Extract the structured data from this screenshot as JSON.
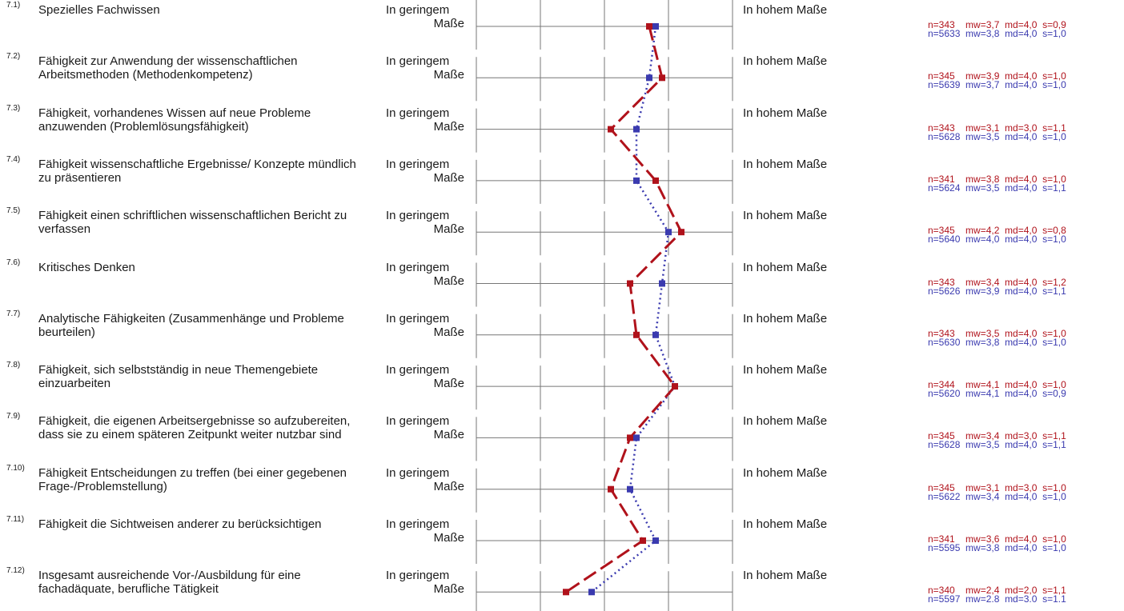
{
  "chart_data": {
    "type": "line",
    "scale": {
      "min": 1,
      "max": 5,
      "left_label": "In geringem Maße",
      "left_label_parts": [
        "In geringem",
        "Maße"
      ],
      "right_label": "In hohem Maße"
    },
    "items": [
      {
        "number": "7.1)",
        "label": "Spezielles Fachwissen"
      },
      {
        "number": "7.2)",
        "label": "Fähigkeit zur Anwendung der wissenschaftlichen Arbeitsmethoden (Methodenkompetenz)"
      },
      {
        "number": "7.3)",
        "label": "Fähigkeit, vorhandenes Wissen auf neue Probleme anzuwenden (Problemlösungsfähigkeit)"
      },
      {
        "number": "7.4)",
        "label": "Fähigkeit wissenschaftliche Ergebnisse/ Konzepte mündlich zu präsentieren"
      },
      {
        "number": "7.5)",
        "label": "Fähigkeit einen schriftlichen wissenschaftlichen Bericht zu verfassen"
      },
      {
        "number": "7.6)",
        "label": "Kritisches Denken"
      },
      {
        "number": "7.7)",
        "label": "Analytische Fähigkeiten (Zusammenhänge und Probleme beurteilen)"
      },
      {
        "number": "7.8)",
        "label": "Fähigkeit, sich selbstständig in neue Themengebiete einzuarbeiten"
      },
      {
        "number": "7.9)",
        "label": "Fähigkeit, die eigenen Arbeitsergebnisse so aufzubereiten, dass sie zu einem späteren Zeitpunkt weiter nutzbar sind"
      },
      {
        "number": "7.10)",
        "label": "Fähigkeit Entscheidungen zu treffen (bei einer gegebenen Frage-/Problemstellung)"
      },
      {
        "number": "7.11)",
        "label": "Fähigkeit die Sichtweisen anderer zu berücksichtigen"
      },
      {
        "number": "7.12)",
        "label": "Insgesamt ausreichende Vor-/Ausbildung für eine fachadäquate, berufliche Tätigkeit"
      }
    ],
    "series": [
      {
        "color": "#b0121b",
        "style": "dashed",
        "values": [
          3.7,
          3.9,
          3.1,
          3.8,
          4.2,
          3.4,
          3.5,
          4.1,
          3.4,
          3.1,
          3.6,
          2.4
        ],
        "stats": [
          "n=343    mw=3,7  md=4,0  s=0,9",
          "n=345    mw=3,9  md=4,0  s=1,0",
          "n=343    mw=3,1  md=3,0  s=1,1",
          "n=341    mw=3,8  md=4,0  s=1,0",
          "n=345    mw=4,2  md=4,0  s=0,8",
          "n=343    mw=3,4  md=4,0  s=1,2",
          "n=343    mw=3,5  md=4,0  s=1,0",
          "n=344    mw=4,1  md=4,0  s=1,0",
          "n=345    mw=3,4  md=3,0  s=1,1",
          "n=345    mw=3,1  md=3,0  s=1,0",
          "n=341    mw=3,6  md=4,0  s=1,0",
          "n=340    mw=2,4  md=2,0  s=1,1"
        ]
      },
      {
        "color": "#3a3aaf",
        "style": "dotted",
        "values": [
          3.8,
          3.7,
          3.5,
          3.5,
          4.0,
          3.9,
          3.8,
          4.1,
          3.5,
          3.4,
          3.8,
          2.8
        ],
        "stats": [
          "n=5633  mw=3,8  md=4,0  s=1,0",
          "n=5639  mw=3,7  md=4,0  s=1,0",
          "n=5628  mw=3,5  md=4,0  s=1,0",
          "n=5624  mw=3,5  md=4,0  s=1,1",
          "n=5640  mw=4,0  md=4,0  s=1,0",
          "n=5626  mw=3,9  md=4,0  s=1,1",
          "n=5630  mw=3,8  md=4,0  s=1,0",
          "n=5620  mw=4,1  md=4,0  s=0,9",
          "n=5628  mw=3,5  md=4,0  s=1,1",
          "n=5622  mw=3,4  md=4,0  s=1,0",
          "n=5595  mw=3,8  md=4,0  s=1,0",
          "n=5597  mw=2.8  md=3.0  s=1.1"
        ]
      }
    ]
  }
}
